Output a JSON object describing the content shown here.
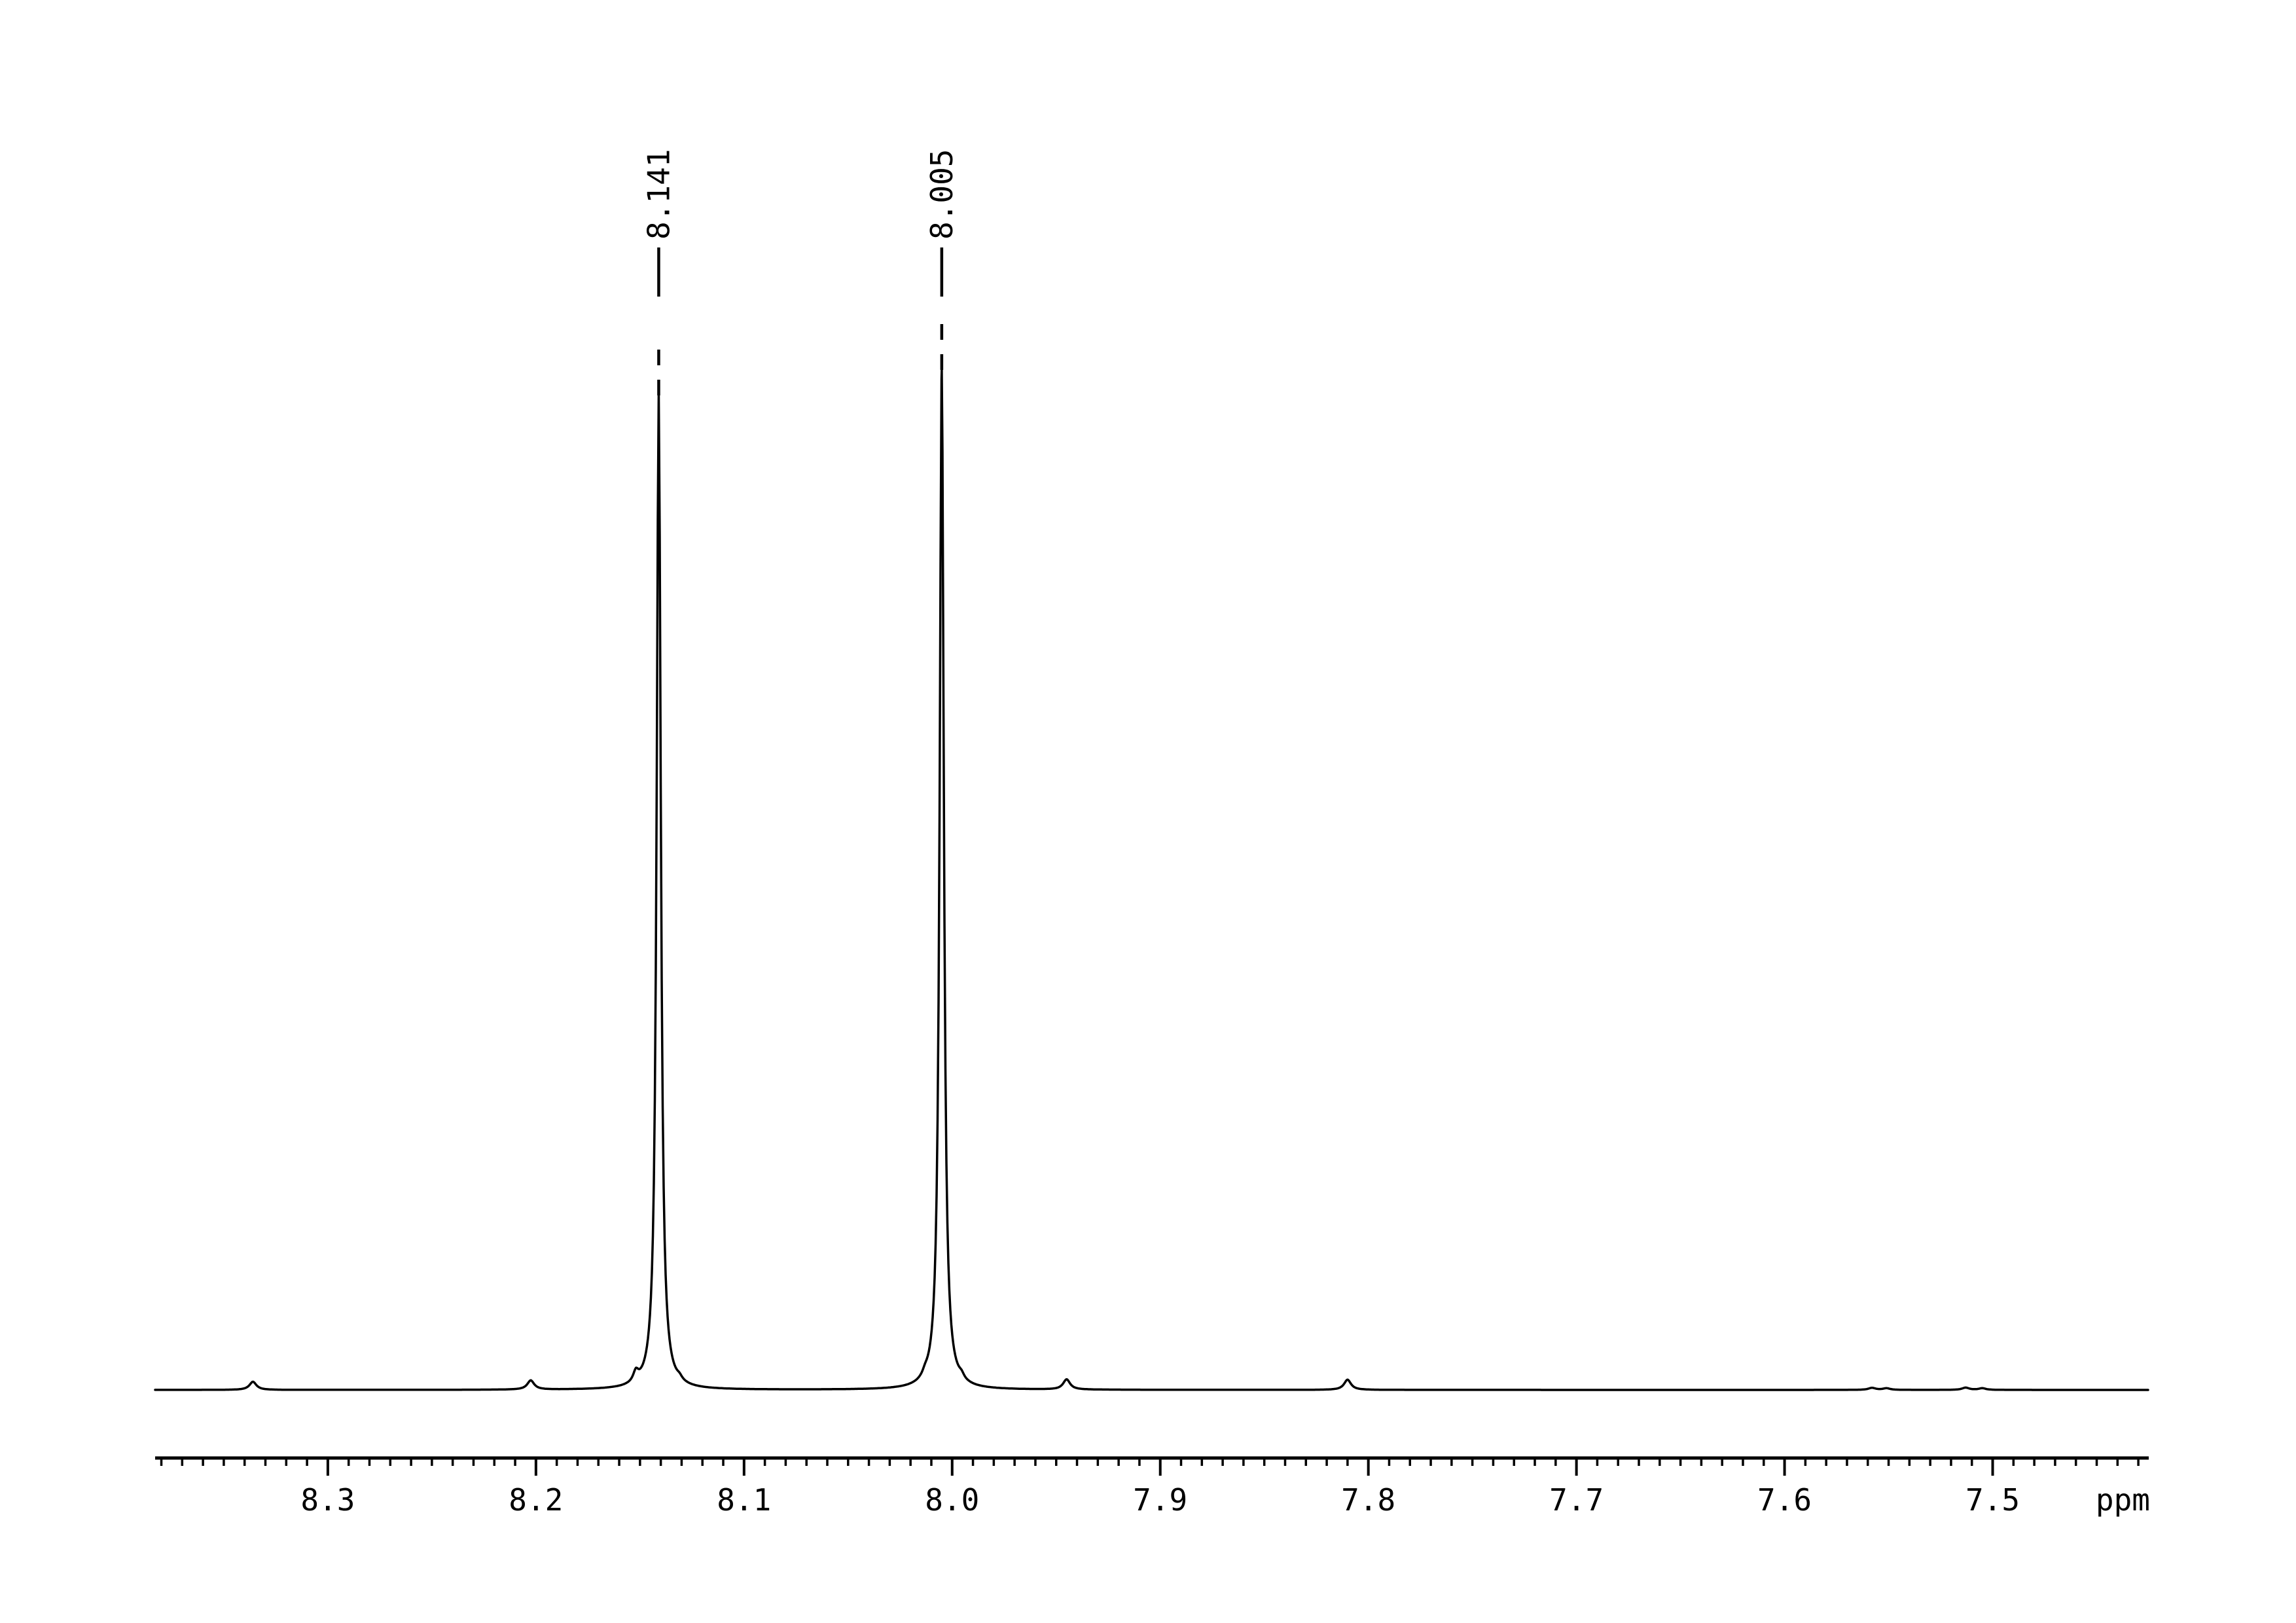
{
  "page": {
    "background_color": "#ffffff"
  },
  "chart_data": {
    "type": "line",
    "subtype": "nmr-1h-spectrum-region",
    "title": "",
    "xlabel": "ppm",
    "ylabel": "",
    "grid": false,
    "legend": false,
    "colors": {
      "trace": "#000000",
      "axis": "#000000",
      "text": "#000000"
    },
    "x_axis": {
      "unit_label": "ppm",
      "range_ppm": [
        8.383,
        7.425
      ],
      "direction": "descending",
      "major_tick_step": 0.1,
      "minor_tick_step": 0.01,
      "major_ticks": [
        8.3,
        8.2,
        8.1,
        8.0,
        7.9,
        7.8,
        7.7,
        7.6,
        7.5
      ],
      "major_tick_labels": [
        "8.3",
        "8.2",
        "8.1",
        "8.0",
        "7.9",
        "7.8",
        "7.7",
        "7.6",
        "7.5"
      ]
    },
    "y_axis": {
      "visible": false
    },
    "peak_annotations": [
      {
        "text": "8.141",
        "ppm": 8.141
      },
      {
        "text": "8.005",
        "ppm": 8.005
      }
    ],
    "series": [
      {
        "name": "spectrum-trace",
        "model": "lorentzian-sum",
        "baseline_intensity": 0,
        "peaks": [
          {
            "ppm": 8.141,
            "intensity": 0.975,
            "hwhm_ppm": 0.0012,
            "kind": "main"
          },
          {
            "ppm": 8.005,
            "intensity": 1.0,
            "hwhm_ppm": 0.0012,
            "kind": "main"
          },
          {
            "ppm": 8.152,
            "intensity": 0.01,
            "hwhm_ppm": 0.0015,
            "kind": "satellite"
          },
          {
            "ppm": 8.131,
            "intensity": 0.003,
            "hwhm_ppm": 0.0015,
            "kind": "satellite"
          },
          {
            "ppm": 8.013,
            "intensity": 0.004,
            "hwhm_ppm": 0.0015,
            "kind": "satellite"
          },
          {
            "ppm": 7.9955,
            "intensity": 0.004,
            "hwhm_ppm": 0.0015,
            "kind": "satellite"
          },
          {
            "ppm": 8.336,
            "intensity": 0.008,
            "hwhm_ppm": 0.002,
            "kind": "minor"
          },
          {
            "ppm": 8.2025,
            "intensity": 0.009,
            "hwhm_ppm": 0.002,
            "kind": "minor"
          },
          {
            "ppm": 7.945,
            "intensity": 0.01,
            "hwhm_ppm": 0.002,
            "kind": "minor"
          },
          {
            "ppm": 7.81,
            "intensity": 0.01,
            "hwhm_ppm": 0.002,
            "kind": "minor"
          },
          {
            "ppm": 7.558,
            "intensity": 0.002,
            "hwhm_ppm": 0.002,
            "kind": "noise"
          },
          {
            "ppm": 7.551,
            "intensity": 0.0016,
            "hwhm_ppm": 0.002,
            "kind": "noise"
          },
          {
            "ppm": 7.513,
            "intensity": 0.0022,
            "hwhm_ppm": 0.002,
            "kind": "noise"
          },
          {
            "ppm": 7.505,
            "intensity": 0.0016,
            "hwhm_ppm": 0.002,
            "kind": "noise"
          }
        ]
      }
    ]
  }
}
